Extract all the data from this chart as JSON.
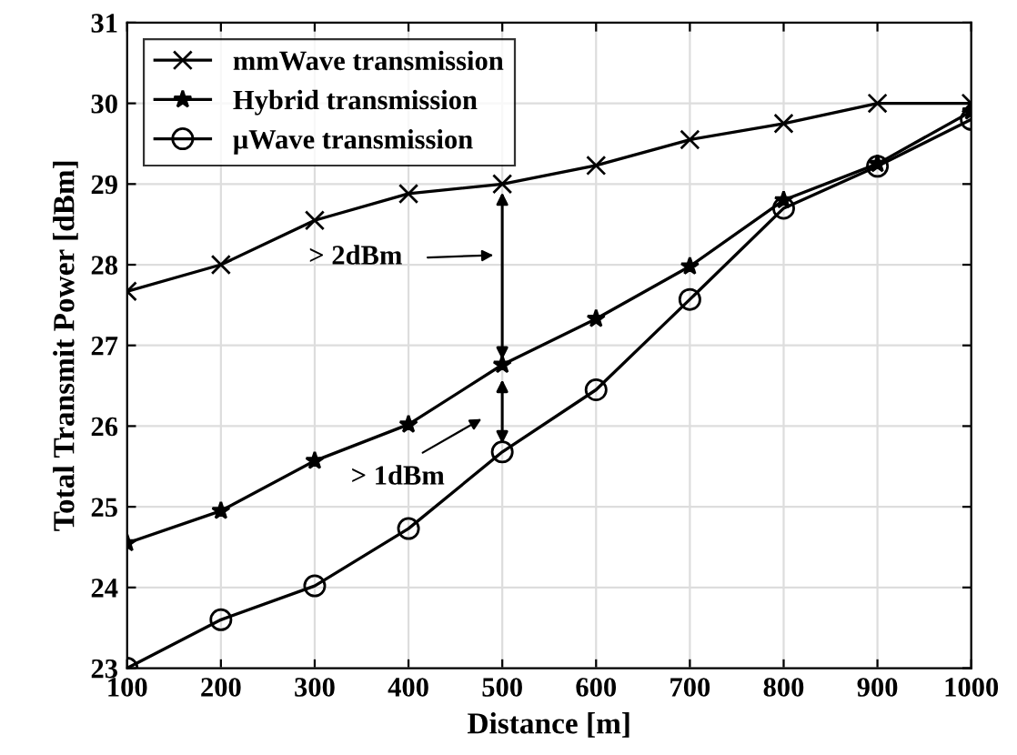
{
  "chart_data": {
    "type": "line",
    "xlabel": "Distance [m]",
    "ylabel": "Total Transmit Power [dBm]",
    "x": [
      100,
      200,
      300,
      400,
      500,
      600,
      700,
      800,
      900,
      1000
    ],
    "series": [
      {
        "name": "mmWave transmission",
        "color": "#000000",
        "marker": "cross",
        "values": [
          27.67,
          28.0,
          28.55,
          28.88,
          29.0,
          29.23,
          29.55,
          29.75,
          30.0,
          30.0
        ]
      },
      {
        "name": "Hybrid transmission",
        "color": "#000000",
        "marker": "star",
        "values": [
          24.55,
          24.95,
          25.57,
          26.02,
          26.76,
          27.33,
          27.98,
          28.8,
          29.25,
          29.9
        ]
      },
      {
        "name": "μWave transmission",
        "color": "#000000",
        "marker": "circle",
        "values": [
          23.0,
          23.6,
          24.02,
          24.73,
          25.68,
          26.45,
          27.57,
          28.7,
          29.22,
          29.8
        ]
      }
    ],
    "annotations": [
      "> 2dBm",
      "> 1dBm"
    ],
    "xlim": [
      100,
      1000
    ],
    "xticks": [
      100,
      200,
      300,
      400,
      500,
      600,
      700,
      800,
      900,
      1000
    ],
    "ylim": [
      23,
      31
    ],
    "yticks": [
      23,
      24,
      25,
      26,
      27,
      28,
      29,
      30,
      31
    ],
    "grid": true,
    "legend": "top left",
    "line_style": "solid"
  }
}
